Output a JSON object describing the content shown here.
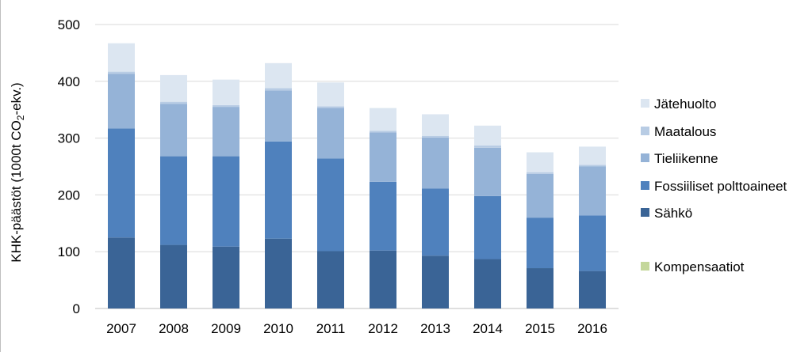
{
  "chart_data": {
    "type": "bar",
    "stacked": true,
    "categories": [
      "2007",
      "2008",
      "2009",
      "2010",
      "2011",
      "2012",
      "2013",
      "2014",
      "2015",
      "2016"
    ],
    "ylabel_main": "KHK-päästöt (1000t CO",
    "ylabel_sub": "2",
    "ylabel_tail": "-ekv.)",
    "ylim": [
      0,
      500
    ],
    "yticks": [
      0,
      100,
      200,
      300,
      400,
      500
    ],
    "grid": true,
    "legend_position": "right",
    "series": [
      {
        "name": "Sähkö",
        "color": "#3A6496",
        "values": [
          125,
          112,
          109,
          123,
          101,
          102,
          93,
          87,
          71,
          66
        ]
      },
      {
        "name": "Fossiiliset polttoaineet",
        "color": "#4F81BD",
        "values": [
          192,
          156,
          159,
          171,
          163,
          121,
          118,
          111,
          89,
          98
        ]
      },
      {
        "name": "Tieliikenne",
        "color": "#95B3D7",
        "values": [
          96,
          92,
          87,
          90,
          89,
          87,
          90,
          85,
          77,
          86
        ]
      },
      {
        "name": "Maatalous",
        "color": "#B8CCE4",
        "values": [
          4,
          4,
          3,
          4,
          3,
          3,
          3,
          4,
          3,
          3
        ]
      },
      {
        "name": "Jätehuolto",
        "color": "#DCE6F1",
        "values": [
          50,
          47,
          45,
          44,
          42,
          40,
          38,
          35,
          35,
          32
        ]
      },
      {
        "name": "Kompensaatiot",
        "color": "#C4D79B",
        "values": [
          0,
          0,
          0,
          0,
          0,
          0,
          0,
          0,
          0,
          0
        ]
      }
    ],
    "legend_order": [
      "Jätehuolto",
      "Maatalous",
      "Tieliikenne",
      "Fossiiliset polttoaineet",
      "Sähkö",
      "Kompensaatiot"
    ]
  }
}
